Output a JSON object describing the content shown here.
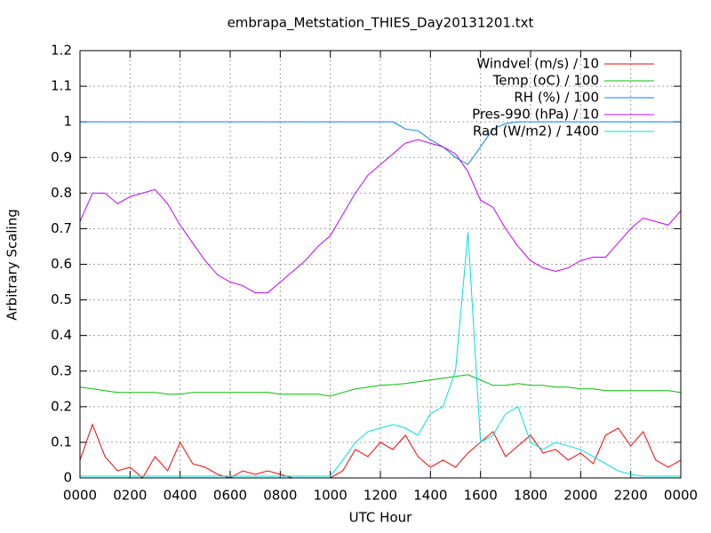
{
  "chart_data": {
    "type": "line",
    "title": "embrapa_Metstation_THIES_Day20131201.txt",
    "x_label": "UTC Hour",
    "y_label": "Arbitrary Scaling",
    "xlim": [
      0,
      24
    ],
    "ylim": [
      0,
      1.2
    ],
    "xticks": [
      {
        "value": 0,
        "label": "0000"
      },
      {
        "value": 2,
        "label": "0200"
      },
      {
        "value": 4,
        "label": "0400"
      },
      {
        "value": 6,
        "label": "0600"
      },
      {
        "value": 8,
        "label": "0800"
      },
      {
        "value": 10,
        "label": "1000"
      },
      {
        "value": 12,
        "label": "1200"
      },
      {
        "value": 14,
        "label": "1400"
      },
      {
        "value": 16,
        "label": "1600"
      },
      {
        "value": 18,
        "label": "1800"
      },
      {
        "value": 20,
        "label": "2000"
      },
      {
        "value": 22,
        "label": "2200"
      },
      {
        "value": 24,
        "label": "0000"
      }
    ],
    "yticks": [
      0,
      0.1,
      0.2,
      0.3,
      0.4,
      0.5,
      0.6,
      0.7,
      0.8,
      0.9,
      1,
      1.1,
      1.2
    ],
    "grid": true,
    "legend": "top-right",
    "x": [
      0,
      0.5,
      1,
      1.5,
      2,
      2.5,
      3,
      3.5,
      4,
      4.5,
      5,
      5.5,
      6,
      6.5,
      7,
      7.5,
      8,
      8.5,
      9,
      9.5,
      10,
      10.5,
      11,
      11.5,
      12,
      12.5,
      13,
      13.5,
      14,
      14.5,
      15,
      15.5,
      16,
      16.5,
      17,
      17.5,
      18,
      18.5,
      19,
      19.5,
      20,
      20.5,
      21,
      21.5,
      22,
      22.5,
      23,
      23.5,
      24
    ],
    "series": [
      {
        "name": "Windvel (m/s) / 10",
        "color": "#ff0000",
        "values": [
          0.05,
          0.15,
          0.06,
          0.02,
          0.03,
          0,
          0.06,
          0.02,
          0.1,
          0.04,
          0.03,
          0.01,
          0,
          0.02,
          0.01,
          0.02,
          0.01,
          0,
          0,
          0,
          0,
          0.02,
          0.08,
          0.06,
          0.1,
          0.08,
          0.12,
          0.06,
          0.03,
          0.05,
          0.03,
          0.07,
          0.1,
          0.13,
          0.06,
          0.09,
          0.12,
          0.07,
          0.08,
          0.05,
          0.07,
          0.04,
          0.12,
          0.14,
          0.09,
          0.13,
          0.05,
          0.03,
          0.05
        ]
      },
      {
        "name": "Temp (oC) / 100",
        "color": "#00c000",
        "values": [
          0.255,
          0.25,
          0.245,
          0.24,
          0.24,
          0.24,
          0.24,
          0.235,
          0.235,
          0.24,
          0.24,
          0.24,
          0.24,
          0.24,
          0.24,
          0.24,
          0.235,
          0.235,
          0.235,
          0.235,
          0.23,
          0.24,
          0.25,
          0.255,
          0.26,
          0.262,
          0.265,
          0.27,
          0.275,
          0.28,
          0.285,
          0.29,
          0.275,
          0.26,
          0.26,
          0.265,
          0.26,
          0.26,
          0.255,
          0.255,
          0.25,
          0.25,
          0.245,
          0.245,
          0.245,
          0.245,
          0.245,
          0.245,
          0.24
        ]
      },
      {
        "name": "RH (%) / 100",
        "color": "#0080ff",
        "values": [
          1,
          1,
          1,
          1,
          1,
          1,
          1,
          1,
          1,
          1,
          1,
          1,
          1,
          1,
          1,
          1,
          1,
          1,
          1,
          1,
          1,
          1,
          1,
          1,
          1,
          1,
          0.98,
          0.975,
          0.95,
          0.93,
          0.9,
          0.88,
          0.93,
          0.98,
          0.995,
          1,
          1,
          1,
          1,
          1,
          1,
          1,
          1,
          1,
          1,
          1,
          1,
          1,
          1
        ]
      },
      {
        "name": "Pres-990 (hPa) / 10",
        "color": "#c000ff",
        "values": [
          0.72,
          0.8,
          0.8,
          0.77,
          0.79,
          0.8,
          0.81,
          0.77,
          0.71,
          0.66,
          0.61,
          0.57,
          0.55,
          0.54,
          0.52,
          0.52,
          0.55,
          0.58,
          0.61,
          0.65,
          0.68,
          0.74,
          0.8,
          0.85,
          0.88,
          0.91,
          0.94,
          0.95,
          0.94,
          0.93,
          0.91,
          0.86,
          0.78,
          0.76,
          0.7,
          0.65,
          0.61,
          0.59,
          0.58,
          0.59,
          0.61,
          0.62,
          0.62,
          0.66,
          0.7,
          0.73,
          0.72,
          0.71,
          0.75
        ]
      },
      {
        "name": "Rad (W/m2) / 1400",
        "color": "#00e0e0",
        "values": [
          0.005,
          0.005,
          0.005,
          0.005,
          0.005,
          0.005,
          0.005,
          0.005,
          0.005,
          0.005,
          0.005,
          0.005,
          0.005,
          0.005,
          0.005,
          0.005,
          0.005,
          0.005,
          0.005,
          0.005,
          0.005,
          0.05,
          0.1,
          0.13,
          0.14,
          0.15,
          0.14,
          0.12,
          0.18,
          0.2,
          0.3,
          0.69,
          0.1,
          0.12,
          0.18,
          0.2,
          0.1,
          0.08,
          0.1,
          0.09,
          0.08,
          0.06,
          0.04,
          0.02,
          0.01,
          0.005,
          0.005,
          0.005,
          0.005
        ]
      }
    ]
  }
}
